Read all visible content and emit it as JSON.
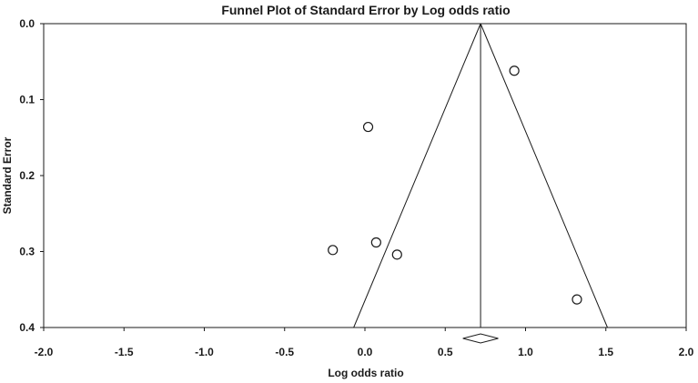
{
  "chart_data": {
    "type": "scatter",
    "title": "Funnel Plot of Standard Error by Log odds ratio",
    "xlabel": "Log odds ratio",
    "ylabel": "Standard Error",
    "xlim": [
      -2.0,
      2.0
    ],
    "ylim": [
      0.0,
      0.4
    ],
    "y_axis_inverted": true,
    "x_ticks": [
      "-2.0",
      "-1.5",
      "-1.0",
      "-0.5",
      "0.0",
      "0.5",
      "1.0",
      "1.5",
      "2.0"
    ],
    "y_ticks": [
      "0.0",
      "0.1",
      "0.2",
      "0.3",
      "0.4"
    ],
    "points": [
      {
        "x": 0.93,
        "y": 0.062
      },
      {
        "x": 0.02,
        "y": 0.136
      },
      {
        "x": 0.07,
        "y": 0.288
      },
      {
        "x": -0.2,
        "y": 0.298
      },
      {
        "x": 0.2,
        "y": 0.304
      },
      {
        "x": 1.32,
        "y": 0.363
      }
    ],
    "pooled_estimate": 0.72,
    "funnel_limits": {
      "lower_at_max_se": -0.07,
      "upper_at_max_se": 1.51
    },
    "summary_diamond": {
      "x": 0.72,
      "ci_low": 0.61,
      "ci_high": 0.83
    },
    "marker": "open-circle",
    "grid": false,
    "legend": "none"
  }
}
